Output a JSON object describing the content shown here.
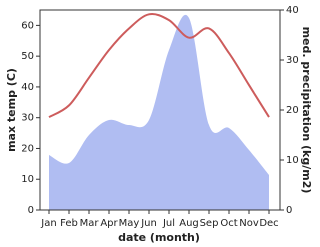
{
  "chart_data": {
    "type": "line-area",
    "x_label": "date (month)",
    "y_label": "max temp (C)",
    "y2_label": "med. precipitation (kg/m2)",
    "categories": [
      "Jan",
      "Feb",
      "Mar",
      "Apr",
      "May",
      "Jun",
      "Jul",
      "Aug",
      "Sep",
      "Oct",
      "Nov",
      "Dec"
    ],
    "ylim": [
      0,
      65
    ],
    "yticks": [
      0,
      10,
      20,
      30,
      40,
      50,
      60
    ],
    "y2lim": [
      0,
      40
    ],
    "y2ticks": [
      0,
      10,
      20,
      30,
      40
    ],
    "series": [
      {
        "name": "max temp",
        "kind": "line",
        "color": "#cd5c5c",
        "values": [
          30.2,
          34,
          43,
          52,
          59,
          63.6,
          61.7,
          56,
          59,
          51,
          40.6,
          30.2
        ]
      },
      {
        "name": "med. precipitation",
        "kind": "area",
        "axis": "y2",
        "color": "#b0bdf2",
        "values": [
          11,
          9.4,
          15,
          18,
          17,
          18,
          32,
          38.4,
          17,
          16.4,
          12,
          7
        ]
      }
    ]
  }
}
